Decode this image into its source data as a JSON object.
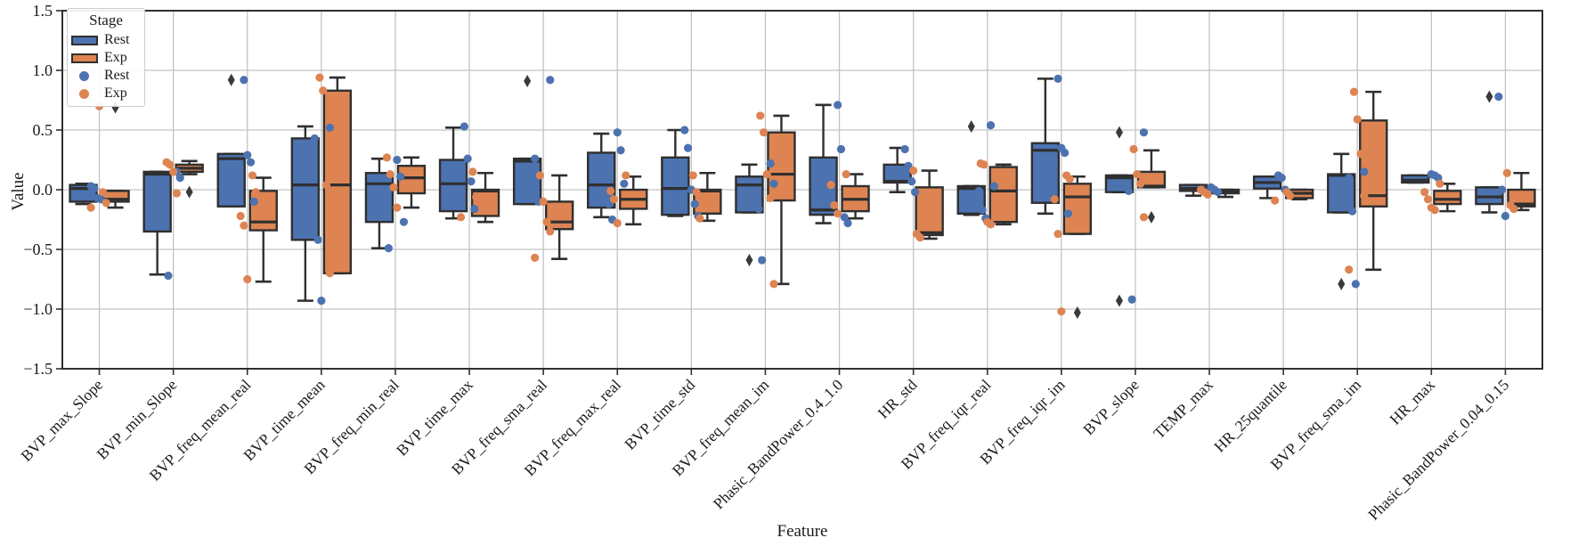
{
  "figure": {
    "background": "#ffffff",
    "grid_color": "#c3c3c3",
    "spine_color": "#2f2f2f",
    "box_edge_color": "#2f2f2f",
    "outlier_color": "#3a3a3a",
    "legend": {
      "title": "Stage",
      "entries": [
        {
          "label": "Rest",
          "type": "box",
          "color": "#4C72B0"
        },
        {
          "label": "Exp",
          "type": "box",
          "color": "#DD8452"
        },
        {
          "label": "Rest",
          "type": "point",
          "color": "#4C72B0"
        },
        {
          "label": "Exp",
          "type": "point",
          "color": "#DD8452"
        }
      ]
    }
  },
  "chart_data": {
    "type": "boxplot-with-strip-points",
    "title": "",
    "xlabel": "Feature",
    "ylabel": "Value",
    "ylim": [
      -1.5,
      1.5
    ],
    "yticks": [
      1.5,
      1.0,
      0.5,
      0.0,
      -0.5,
      -1.0,
      -1.5
    ],
    "grid": true,
    "legend_position": "upper-left",
    "series": [
      "Rest",
      "Exp"
    ],
    "series_colors": {
      "Rest": "#4C72B0",
      "Exp": "#DD8452"
    },
    "categories": [
      "BVP_max_Slope",
      "BVP_min_Slope",
      "BVP_freq_mean_real",
      "BVP_time_mean",
      "BVP_freq_min_real",
      "BVP_time_max",
      "BVP_freq_sma_real",
      "BVP_freq_max_real",
      "BVP_time_std",
      "BVP_freq_mean_im",
      "Phasic_BandPower_0.4_1.0",
      "HR_std",
      "BVP_freq_iqr_real",
      "BVP_freq_iqr_im",
      "BVP_slope",
      "TEMP_max",
      "HR_25quantile",
      "BVP_freq_sma_im",
      "HR_max",
      "Phasic_BandPower_0.04_0.15"
    ],
    "groups": [
      {
        "feature": "BVP_max_Slope",
        "Rest": {
          "whislo": -0.12,
          "q1": -0.1,
          "med": 0.01,
          "q3": 0.04,
          "whishi": 0.05,
          "outliers": [],
          "points": [
            0.03,
            0.01,
            -0.07,
            -0.08
          ]
        },
        "Exp": {
          "whislo": -0.15,
          "q1": -0.1,
          "med": -0.08,
          "q3": -0.01,
          "whishi": -0.01,
          "outliers": [
            0.69
          ],
          "points": [
            0.7,
            -0.02,
            -0.11,
            -0.15
          ]
        }
      },
      {
        "feature": "BVP_min_Slope",
        "Rest": {
          "whislo": -0.71,
          "q1": -0.35,
          "med": 0.13,
          "q3": 0.15,
          "whishi": 0.15,
          "outliers": [],
          "points": [
            0.15,
            0.1,
            -0.02,
            -0.72
          ]
        },
        "Exp": {
          "whislo": 0.13,
          "q1": 0.15,
          "med": 0.18,
          "q3": 0.21,
          "whishi": 0.24,
          "outliers": [
            -0.02
          ],
          "points": [
            0.23,
            0.21,
            0.15,
            -0.03
          ]
        }
      },
      {
        "feature": "BVP_freq_mean_real",
        "Rest": {
          "whislo": -0.14,
          "q1": -0.14,
          "med": 0.26,
          "q3": 0.3,
          "whishi": 0.3,
          "outliers": [
            0.92
          ],
          "points": [
            0.92,
            0.29,
            0.23,
            -0.1
          ]
        },
        "Exp": {
          "whislo": -0.77,
          "q1": -0.34,
          "med": -0.27,
          "q3": -0.01,
          "whishi": 0.1,
          "outliers": [],
          "points": [
            0.12,
            -0.02,
            -0.22,
            -0.3,
            -0.75
          ]
        }
      },
      {
        "feature": "BVP_time_mean",
        "Rest": {
          "whislo": -0.93,
          "q1": -0.42,
          "med": 0.04,
          "q3": 0.43,
          "whishi": 0.53,
          "outliers": [],
          "points": [
            0.52,
            0.43,
            -0.42,
            -0.93
          ]
        },
        "Exp": {
          "whislo": -0.7,
          "q1": -0.7,
          "med": 0.04,
          "q3": 0.83,
          "whishi": 0.94,
          "outliers": [],
          "points": [
            0.94,
            0.83,
            0.04,
            -0.7
          ]
        }
      },
      {
        "feature": "BVP_freq_min_real",
        "Rest": {
          "whislo": -0.49,
          "q1": -0.27,
          "med": 0.05,
          "q3": 0.14,
          "whishi": 0.26,
          "outliers": [],
          "points": [
            0.25,
            0.11,
            -0.27,
            -0.49
          ]
        },
        "Exp": {
          "whislo": -0.15,
          "q1": -0.03,
          "med": 0.1,
          "q3": 0.2,
          "whishi": 0.27,
          "outliers": [],
          "points": [
            0.27,
            0.13,
            0.02,
            -0.15
          ]
        }
      },
      {
        "feature": "BVP_time_max",
        "Rest": {
          "whislo": -0.24,
          "q1": -0.18,
          "med": 0.05,
          "q3": 0.25,
          "whishi": 0.52,
          "outliers": [],
          "points": [
            0.53,
            0.26,
            0.07,
            -0.16
          ]
        },
        "Exp": {
          "whislo": -0.27,
          "q1": -0.22,
          "med": -0.01,
          "q3": 0.0,
          "whishi": 0.14,
          "outliers": [],
          "points": [
            0.15,
            -0.06,
            -0.23
          ]
        }
      },
      {
        "feature": "BVP_freq_sma_real",
        "Rest": {
          "whislo": -0.12,
          "q1": -0.12,
          "med": 0.24,
          "q3": 0.26,
          "whishi": 0.26,
          "outliers": [
            0.91
          ],
          "points": [
            0.92,
            0.26,
            -0.1
          ]
        },
        "Exp": {
          "whislo": -0.58,
          "q1": -0.33,
          "med": -0.27,
          "q3": -0.1,
          "whishi": 0.12,
          "outliers": [],
          "points": [
            0.12,
            -0.1,
            -0.27,
            -0.35,
            -0.57
          ]
        }
      },
      {
        "feature": "BVP_freq_max_real",
        "Rest": {
          "whislo": -0.23,
          "q1": -0.15,
          "med": 0.04,
          "q3": 0.31,
          "whishi": 0.47,
          "outliers": [],
          "points": [
            0.48,
            0.33,
            0.05,
            -0.12,
            -0.25
          ]
        },
        "Exp": {
          "whislo": -0.29,
          "q1": -0.16,
          "med": -0.08,
          "q3": 0.0,
          "whishi": 0.11,
          "outliers": [],
          "points": [
            0.12,
            -0.01,
            -0.08,
            -0.28
          ]
        }
      },
      {
        "feature": "BVP_time_std",
        "Rest": {
          "whislo": -0.22,
          "q1": -0.21,
          "med": 0.01,
          "q3": 0.27,
          "whishi": 0.5,
          "outliers": [],
          "points": [
            0.5,
            0.35,
            0.0,
            -0.12,
            -0.22
          ]
        },
        "Exp": {
          "whislo": -0.26,
          "q1": -0.2,
          "med": -0.01,
          "q3": 0.0,
          "whishi": 0.14,
          "outliers": [],
          "points": [
            0.12,
            -0.02,
            -0.24
          ]
        }
      },
      {
        "feature": "BVP_freq_mean_im",
        "Rest": {
          "whislo": -0.19,
          "q1": -0.19,
          "med": 0.04,
          "q3": 0.11,
          "whishi": 0.21,
          "outliers": [
            -0.59
          ],
          "points": [
            0.22,
            0.05,
            -0.16,
            -0.59
          ]
        },
        "Exp": {
          "whislo": -0.79,
          "q1": -0.09,
          "med": 0.13,
          "q3": 0.48,
          "whishi": 0.62,
          "outliers": [],
          "points": [
            0.62,
            0.48,
            0.13,
            -0.07,
            -0.79
          ]
        }
      },
      {
        "feature": "Phasic_BandPower_0.4_1.0",
        "Rest": {
          "whislo": -0.28,
          "q1": -0.21,
          "med": -0.17,
          "q3": 0.27,
          "whishi": 0.71,
          "outliers": [],
          "points": [
            0.71,
            0.34,
            -0.23,
            -0.28
          ]
        },
        "Exp": {
          "whislo": -0.24,
          "q1": -0.18,
          "med": -0.08,
          "q3": 0.03,
          "whishi": 0.13,
          "outliers": [],
          "points": [
            0.13,
            0.04,
            -0.13,
            -0.2
          ]
        }
      },
      {
        "feature": "HR_std",
        "Rest": {
          "whislo": -0.02,
          "q1": 0.06,
          "med": 0.07,
          "q3": 0.21,
          "whishi": 0.35,
          "outliers": [],
          "points": [
            0.34,
            0.2,
            0.07,
            -0.02
          ]
        },
        "Exp": {
          "whislo": -0.41,
          "q1": -0.38,
          "med": -0.36,
          "q3": 0.02,
          "whishi": 0.16,
          "outliers": [],
          "points": [
            0.16,
            -0.37,
            -0.4
          ]
        }
      },
      {
        "feature": "BVP_freq_iqr_real",
        "Rest": {
          "whislo": -0.21,
          "q1": -0.2,
          "med": 0.01,
          "q3": 0.03,
          "whishi": 0.03,
          "outliers": [
            0.53
          ],
          "points": [
            0.54,
            0.03,
            -0.01,
            -0.17,
            -0.24
          ]
        },
        "Exp": {
          "whislo": -0.29,
          "q1": -0.27,
          "med": -0.01,
          "q3": 0.19,
          "whishi": 0.21,
          "outliers": [],
          "points": [
            0.22,
            0.21,
            -0.27,
            -0.29
          ]
        }
      },
      {
        "feature": "BVP_freq_iqr_im",
        "Rest": {
          "whislo": -0.2,
          "q1": -0.11,
          "med": 0.33,
          "q3": 0.39,
          "whishi": 0.93,
          "outliers": [],
          "points": [
            0.93,
            0.35,
            0.31,
            -0.2
          ]
        },
        "Exp": {
          "whislo": -0.37,
          "q1": -0.37,
          "med": -0.06,
          "q3": 0.05,
          "whishi": 0.11,
          "outliers": [
            -1.03
          ],
          "points": [
            0.12,
            0.09,
            -0.08,
            -0.37,
            -1.02
          ]
        }
      },
      {
        "feature": "BVP_slope",
        "Rest": {
          "whislo": -0.02,
          "q1": -0.02,
          "med": 0.1,
          "q3": 0.12,
          "whishi": 0.12,
          "outliers": [
            0.48,
            -0.93
          ],
          "points": [
            0.48,
            -0.01,
            -0.92
          ]
        },
        "Exp": {
          "whislo": 0.02,
          "q1": 0.02,
          "med": 0.03,
          "q3": 0.15,
          "whishi": 0.33,
          "outliers": [
            -0.23
          ],
          "points": [
            0.34,
            0.13,
            0.05,
            -0.23
          ]
        }
      },
      {
        "feature": "TEMP_max",
        "Rest": {
          "whislo": -0.05,
          "q1": -0.01,
          "med": 0.01,
          "q3": 0.04,
          "whishi": 0.04,
          "outliers": [],
          "points": [
            0.02,
            0.0,
            -0.02
          ]
        },
        "Exp": {
          "whislo": -0.06,
          "q1": -0.03,
          "med": -0.01,
          "q3": 0.0,
          "whishi": 0.0,
          "outliers": [],
          "points": [
            0.0,
            -0.02,
            -0.04
          ]
        }
      },
      {
        "feature": "HR_25quantile",
        "Rest": {
          "whislo": -0.07,
          "q1": 0.01,
          "med": 0.06,
          "q3": 0.11,
          "whishi": 0.11,
          "outliers": [],
          "points": [
            0.12,
            0.1,
            0.0,
            -0.03
          ]
        },
        "Exp": {
          "whislo": -0.08,
          "q1": -0.07,
          "med": -0.03,
          "q3": 0.0,
          "whishi": 0.0,
          "outliers": [],
          "points": [
            -0.02,
            -0.05,
            -0.09
          ]
        }
      },
      {
        "feature": "BVP_freq_sma_im",
        "Rest": {
          "whislo": -0.19,
          "q1": -0.19,
          "med": 0.12,
          "q3": 0.13,
          "whishi": 0.3,
          "outliers": [
            -0.79
          ],
          "points": [
            0.15,
            0.1,
            -0.18,
            -0.79
          ]
        },
        "Exp": {
          "whislo": -0.67,
          "q1": -0.14,
          "med": -0.05,
          "q3": 0.58,
          "whishi": 0.82,
          "outliers": [],
          "points": [
            0.82,
            0.59,
            0.3,
            -0.05,
            -0.67
          ]
        }
      },
      {
        "feature": "HR_max",
        "Rest": {
          "whislo": 0.06,
          "q1": 0.06,
          "med": 0.08,
          "q3": 0.12,
          "whishi": 0.12,
          "outliers": [],
          "points": [
            0.13,
            0.12,
            0.1
          ]
        },
        "Exp": {
          "whislo": -0.18,
          "q1": -0.12,
          "med": -0.08,
          "q3": -0.01,
          "whishi": 0.05,
          "outliers": [],
          "points": [
            0.05,
            -0.02,
            -0.08,
            -0.15,
            -0.17
          ]
        }
      },
      {
        "feature": "Phasic_BandPower_0.04_0.15",
        "Rest": {
          "whislo": -0.19,
          "q1": -0.12,
          "med": -0.06,
          "q3": 0.02,
          "whishi": 0.02,
          "outliers": [
            0.78
          ],
          "points": [
            0.78,
            0.0,
            -0.22
          ]
        },
        "Exp": {
          "whislo": -0.17,
          "q1": -0.14,
          "med": -0.12,
          "q3": 0.0,
          "whishi": 0.14,
          "outliers": [],
          "points": [
            0.14,
            -0.13,
            -0.16
          ]
        }
      }
    ]
  }
}
